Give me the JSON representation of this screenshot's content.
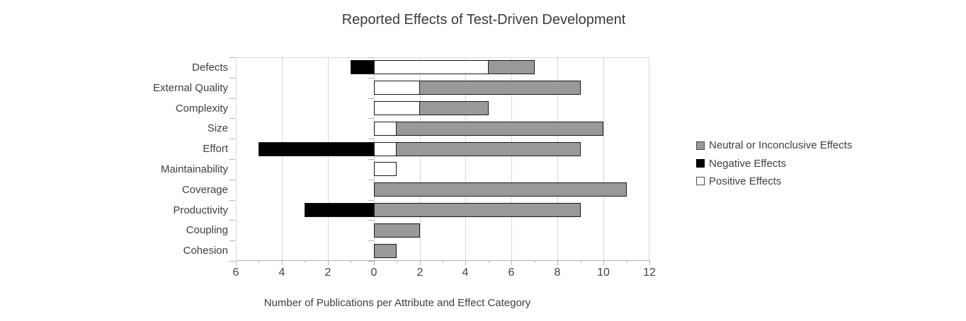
{
  "title": "Reported Effects of Test-Driven Development",
  "chart_data": {
    "type": "bar",
    "orientation": "horizontal-diverging-stacked",
    "title": "Reported Effects of Test-Driven Development",
    "xlabel": "Number of Publications per Attribute and Effect Category",
    "ylabel": "",
    "categories": [
      "Defects",
      "External Quality",
      "Complexity",
      "Size",
      "Effort",
      "Maintainability",
      "Coverage",
      "Productivity",
      "Coupling",
      "Cohesion"
    ],
    "series": [
      {
        "name": "Neutral or Inconclusive Effects",
        "color": "#999999",
        "direction": "right",
        "stack_after": "Positive Effects",
        "values": [
          2,
          7,
          3,
          9,
          8,
          0,
          11,
          9,
          2,
          1
        ]
      },
      {
        "name": "Negative Effects",
        "color": "#000000",
        "direction": "left",
        "values": [
          1,
          0,
          0,
          0,
          5,
          0,
          0,
          3,
          0,
          0
        ]
      },
      {
        "name": "Positive Effects",
        "color": "#ffffff",
        "direction": "right",
        "values": [
          5,
          2,
          2,
          1,
          1,
          1,
          0,
          0,
          0,
          0
        ]
      }
    ],
    "xlim": [
      -6,
      12
    ],
    "x_tick_values": [
      -6,
      -4,
      -2,
      0,
      2,
      4,
      6,
      8,
      10,
      12
    ],
    "x_tick_labels": [
      "6",
      "4",
      "2",
      "0",
      "2",
      "4",
      "6",
      "8",
      "10",
      "12"
    ],
    "minor_tick_interval": 1,
    "grid": "vertical-major",
    "legend_position": "right",
    "legend_order": [
      "Neutral or Inconclusive Effects",
      "Negative Effects",
      "Positive Effects"
    ]
  },
  "colors": {
    "neutral": "#999999",
    "negative": "#000000",
    "positive": "#ffffff",
    "bar_border": "#1a1a1a",
    "gridline": "#d9d9d9",
    "axis": "#b3b3b3",
    "text": "#3f3f3f"
  }
}
